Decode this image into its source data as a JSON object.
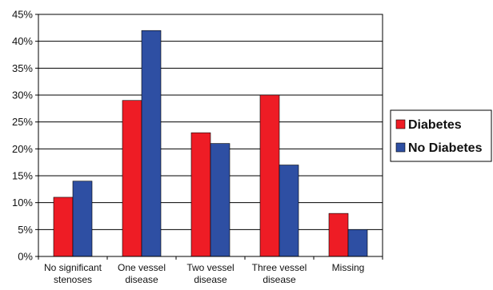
{
  "chart_data": {
    "type": "bar",
    "categories": [
      [
        "No significant",
        "stenoses"
      ],
      [
        "One vessel",
        "disease"
      ],
      [
        "Two vessel",
        "disease"
      ],
      [
        "Three vessel",
        "disease"
      ],
      [
        "Missing"
      ]
    ],
    "series": [
      {
        "name": "Diabetes",
        "color": "#ee1c25",
        "values": [
          11,
          29,
          23,
          30,
          8
        ]
      },
      {
        "name": "No Diabetes",
        "color": "#2e4fa3",
        "values": [
          14,
          42,
          21,
          17,
          5
        ]
      }
    ],
    "y_unit": "%",
    "ylim": [
      0,
      45
    ],
    "yticks": [
      "0%",
      "5%",
      "10%",
      "15%",
      "20%",
      "25%",
      "30%",
      "35%",
      "40%",
      "45%"
    ],
    "grid": true,
    "legend_position": "right"
  }
}
